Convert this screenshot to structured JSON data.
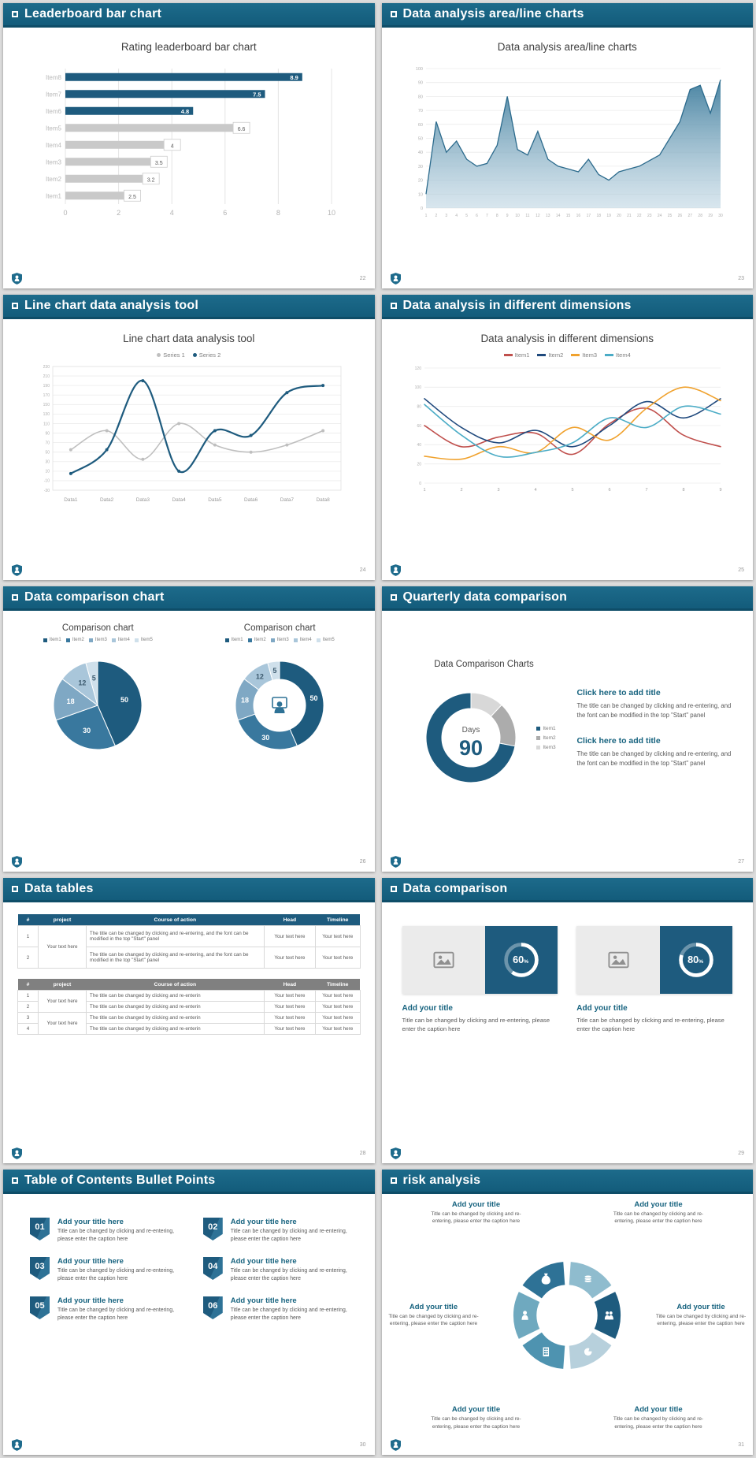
{
  "theme": {
    "accent": "#17637F",
    "header_top": "#1D6B8B",
    "header_bottom": "#135C7B",
    "bar_dark": "#1E5B7E",
    "bar_gray": "#C9C9C9",
    "body_text": "#595959"
  },
  "slides": [
    {
      "header": "Leaderboard bar chart",
      "page": "22",
      "title": "Rating leaderboard bar chart"
    },
    {
      "header": "Data analysis area/line charts",
      "page": "23",
      "title": "Data analysis area/line charts"
    },
    {
      "header": "Line chart data analysis tool",
      "page": "24",
      "title": "Line chart data analysis tool"
    },
    {
      "header": "Data analysis in different dimensions",
      "page": "25",
      "title": "Data analysis in different dimensions"
    },
    {
      "header": "Data comparison chart",
      "page": "26",
      "left_chart_title": "Comparison chart",
      "right_chart_title": "Comparison chart"
    },
    {
      "header": "Quarterly data comparison",
      "page": "27",
      "chart_title": "Data Comparison Charts",
      "blocks": [
        {
          "title": "Click here to add title",
          "body": "The title can be changed by clicking and re-entering, and the font can be modified in the top \"Start\" panel"
        },
        {
          "title": "Click here to add title",
          "body": "The title can be changed by clicking and re-entering, and the font can be modified in the top \"Start\" panel"
        }
      ]
    },
    {
      "header": "Data tables",
      "page": "28"
    },
    {
      "header": "Data comparison",
      "page": "29",
      "cards": [
        {
          "percent": 60,
          "title": "Add your title",
          "caption": "Title can be changed by clicking and re-entering, please enter the caption here"
        },
        {
          "percent": 80,
          "title": "Add your title",
          "caption": "Title can be changed by clicking and re-entering, please enter the caption here"
        }
      ]
    },
    {
      "header": "Table of Contents Bullet Points",
      "page": "30",
      "items": [
        {
          "num": "01",
          "title": "Add your title here",
          "caption": "Title can be changed by clicking and re-entering, please enter the caption here"
        },
        {
          "num": "02",
          "title": "Add your title here",
          "caption": "Title can be changed by clicking and re-entering, please enter the caption here"
        },
        {
          "num": "03",
          "title": "Add your title here",
          "caption": "Title can be changed by clicking and re-entering, please enter the caption here"
        },
        {
          "num": "04",
          "title": "Add your title here",
          "caption": "Title can be changed by clicking and re-entering, please enter the caption here"
        },
        {
          "num": "05",
          "title": "Add your title here",
          "caption": "Title can be changed by clicking and re-entering, please enter the caption here"
        },
        {
          "num": "06",
          "title": "Add your title here",
          "caption": "Title can be changed by clicking and re-entering, please enter the caption here"
        }
      ]
    },
    {
      "header": "risk analysis",
      "page": "31",
      "blocks": [
        {
          "title": "Add your title",
          "caption": "Title can be changed by clicking and re-entering, please enter the caption here"
        },
        {
          "title": "Add your title",
          "caption": "Title can be changed by clicking and re-entering, please enter the caption here"
        },
        {
          "title": "Add your title",
          "caption": "Title can be changed by clicking and re-entering, please enter the caption here"
        },
        {
          "title": "Add your title",
          "caption": "Title can be changed by clicking and re-entering, please enter the caption here"
        },
        {
          "title": "Add your title",
          "caption": "Title can be changed by clicking and re-entering, please enter the caption here"
        },
        {
          "title": "Add your title",
          "caption": "Title can be changed by clicking and re-entering, please enter the caption here"
        }
      ]
    }
  ],
  "tables": [
    {
      "variant": "teal",
      "headers": [
        "#",
        "project",
        "Course of action",
        "Head",
        "Timeline"
      ],
      "rows": [
        {
          "num": "1",
          "project": "Your text here",
          "project_span": 2,
          "course": "The title can be changed by clicking and re-entering, and the font can be modified in the top \"Start\" panel",
          "head": "Your text here",
          "timeline": "Your text here"
        },
        {
          "num": "2",
          "course": "The title can be changed by clicking and re-entering, and the font can be modified in the top \"Start\" panel",
          "head": "Your text here",
          "timeline": "Your text here"
        }
      ]
    },
    {
      "variant": "gray",
      "headers": [
        "#",
        "project",
        "Course of action",
        "Head",
        "Timeline"
      ],
      "rows": [
        {
          "num": "1",
          "project": "Your text here",
          "project_span": 2,
          "course": "The title can be changed by clicking and re-enterin",
          "head": "Your text here",
          "timeline": "Your text here"
        },
        {
          "num": "2",
          "course": "The title can be changed by clicking and re-enterin",
          "head": "Your text here",
          "timeline": "Your text here"
        },
        {
          "num": "3",
          "project": "Your text here",
          "project_span": 2,
          "course": "The title can be changed by clicking and re-enterin",
          "head": "Your text here",
          "timeline": "Your text here"
        },
        {
          "num": "4",
          "course": "The title can be changed by clicking and re-enterin",
          "head": "Your text here",
          "timeline": "Your text here"
        }
      ]
    }
  ],
  "chart_data": [
    {
      "id": "leaderboard",
      "type": "bar",
      "orientation": "horizontal",
      "title": "Rating leaderboard bar chart",
      "categories": [
        "Item8",
        "Item7",
        "Item6",
        "Item5",
        "Item4",
        "Item3",
        "Item2",
        "Item1"
      ],
      "values": [
        8.9,
        7.5,
        4.8,
        6.6,
        4,
        3.5,
        3.2,
        2.5
      ],
      "colors": [
        "#1E5B7E",
        "#1E5B7E",
        "#1E5B7E",
        "#C9C9C9",
        "#C9C9C9",
        "#C9C9C9",
        "#C9C9C9",
        "#C9C9C9"
      ],
      "xlim": [
        0,
        10
      ],
      "xticks": [
        0,
        2,
        4,
        6,
        8,
        10
      ],
      "grid": true
    },
    {
      "id": "area",
      "type": "area",
      "title": "Data analysis area/line charts",
      "x": [
        1,
        2,
        3,
        4,
        5,
        6,
        7,
        8,
        9,
        10,
        11,
        12,
        13,
        14,
        15,
        16,
        17,
        18,
        19,
        20,
        21,
        22,
        23,
        24,
        25,
        26,
        27,
        28,
        29,
        30
      ],
      "values": [
        10,
        62,
        40,
        48,
        35,
        30,
        32,
        45,
        80,
        42,
        38,
        55,
        35,
        30,
        28,
        26,
        35,
        24,
        20,
        26,
        28,
        30,
        34,
        38,
        50,
        62,
        85,
        88,
        68,
        92
      ],
      "ylim": [
        0,
        100
      ],
      "ytick_step": 10,
      "grid": true,
      "fill_top": "#3F7D9D",
      "fill_bottom": "#B9D2E0",
      "stroke": "#2B6A8C"
    },
    {
      "id": "line2",
      "type": "line",
      "title": "Line chart data analysis tool",
      "categories": [
        "Data1",
        "Data2",
        "Data3",
        "Data4",
        "Data5",
        "Data6",
        "Data7",
        "Data8"
      ],
      "series": [
        {
          "name": "Series 1",
          "color": "#BFBFBF",
          "values": [
            55,
            95,
            35,
            110,
            65,
            50,
            65,
            95
          ]
        },
        {
          "name": "Series 2",
          "color": "#1E5B7E",
          "values": [
            5,
            55,
            200,
            10,
            95,
            85,
            175,
            190
          ]
        }
      ],
      "ylim": [
        -30,
        230
      ],
      "ytick_step": 20,
      "legend_position": "top",
      "grid": true
    },
    {
      "id": "line4",
      "type": "line",
      "title": "Data analysis in different dimensions",
      "x": [
        1,
        2,
        3,
        4,
        5,
        6,
        7,
        8,
        9
      ],
      "series": [
        {
          "name": "Item1",
          "color": "#C0504D",
          "values": [
            60,
            38,
            48,
            52,
            30,
            62,
            78,
            50,
            38
          ]
        },
        {
          "name": "Item2",
          "color": "#1F497D",
          "values": [
            88,
            58,
            42,
            55,
            38,
            60,
            85,
            68,
            88
          ]
        },
        {
          "name": "Item3",
          "color": "#F0A22E",
          "values": [
            28,
            25,
            38,
            32,
            58,
            45,
            78,
            100,
            86
          ]
        },
        {
          "name": "Item4",
          "color": "#4BACC6",
          "values": [
            82,
            50,
            28,
            32,
            42,
            68,
            58,
            80,
            72
          ]
        }
      ],
      "ylim": [
        0,
        120
      ],
      "ytick_step": 20,
      "legend_position": "top",
      "grid": true
    },
    {
      "id": "pie",
      "type": "pie",
      "title": "Comparison chart",
      "labels": [
        "Item1",
        "Item2",
        "Item3",
        "Item4",
        "Item5"
      ],
      "values": [
        50,
        30,
        18,
        12,
        5
      ],
      "colors": [
        "#1E5B7E",
        "#39789E",
        "#7FA8C4",
        "#A9C6DA",
        "#CFE0EB"
      ]
    },
    {
      "id": "donut",
      "type": "pie",
      "donut": true,
      "title": "Comparison chart",
      "labels": [
        "Item1",
        "Item2",
        "Item3",
        "Item4",
        "Item5"
      ],
      "values": [
        50,
        30,
        18,
        12,
        5
      ],
      "colors": [
        "#1E5B7E",
        "#39789E",
        "#7FA8C4",
        "#A9C6DA",
        "#CFE0EB"
      ],
      "center_icon": "person"
    },
    {
      "id": "days-donut",
      "type": "pie",
      "donut": true,
      "labels": [
        "Item1",
        "Item2",
        "Item3"
      ],
      "values": [
        72,
        16,
        12
      ],
      "colors": [
        "#1E5B7E",
        "#ACACAC",
        "#D8D8D8"
      ],
      "center_label": "Days",
      "center_value": "90"
    },
    {
      "id": "progress-60",
      "type": "donut-progress",
      "value": 60,
      "unit": "%"
    },
    {
      "id": "progress-80",
      "type": "donut-progress",
      "value": 80,
      "unit": "%"
    },
    {
      "id": "pinwheel",
      "type": "diagram-wheel",
      "colors": [
        "#2E7296",
        "#8FBCCE",
        "#1E5B7E",
        "#B7D0DC",
        "#4E93B0",
        "#6FA9BF"
      ],
      "icons": [
        "money-bag-icon",
        "coins-icon",
        "people-icon",
        "pie-icon",
        "building-icon",
        "person-icon"
      ]
    }
  ]
}
